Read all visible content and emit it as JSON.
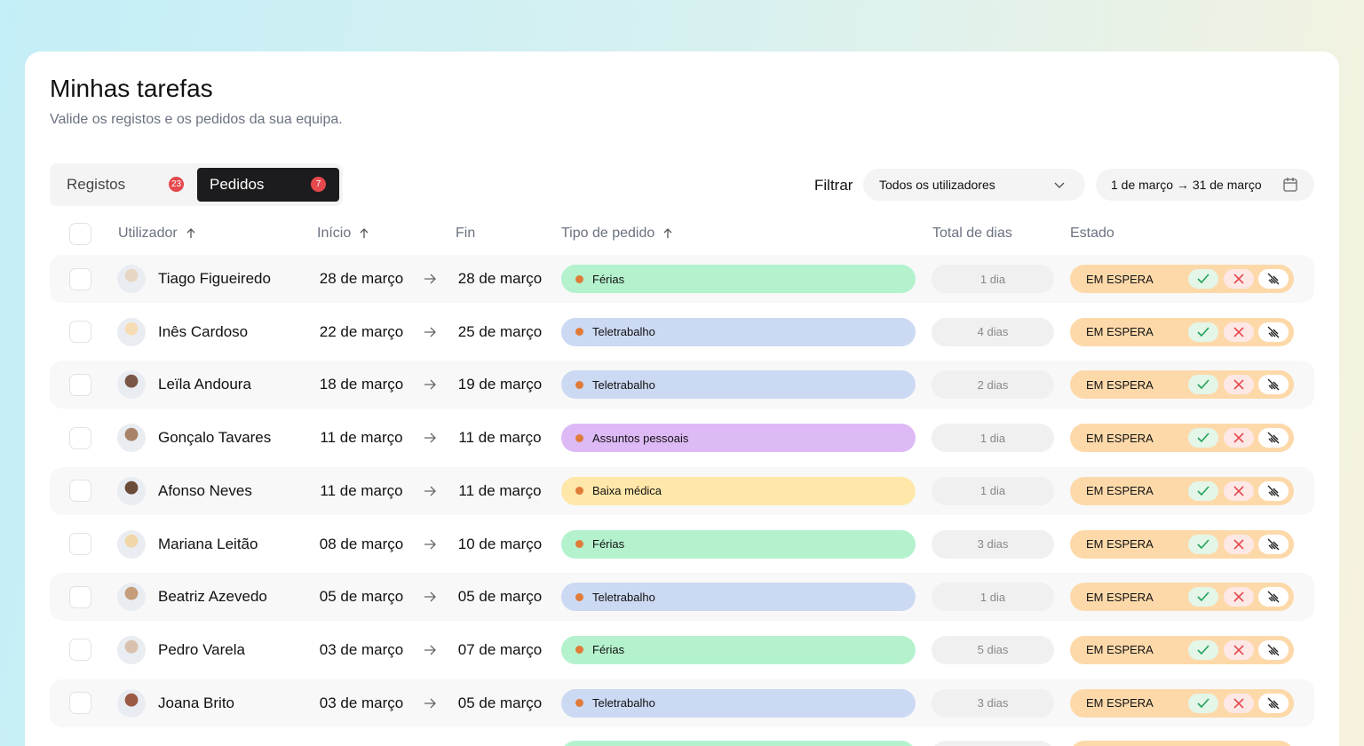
{
  "header": {
    "title": "Minhas tarefas",
    "subtitle": "Valide os registos e os pedidos da sua equipa."
  },
  "tabs": [
    {
      "label": "Registos",
      "count": 23
    },
    {
      "label": "Pedidos",
      "count": 7
    }
  ],
  "filter": {
    "label": "Filtrar",
    "users": "Todos os utilizadores",
    "range": "1 de março → 31 de março"
  },
  "table": {
    "columns": [
      "Utilizador",
      "Início",
      "Fin",
      "Tipo de pedido",
      "Total de dias",
      "Estado"
    ],
    "rows": [
      {
        "name": "Tiago Figueiredo",
        "start": "28 de março",
        "end": "28 de março",
        "type": "Férias",
        "color": "#b4f2cd",
        "days": "1 dia",
        "status": "EM ESPERA"
      },
      {
        "name": "Inês Cardoso",
        "start": "22 de março",
        "end": "25 de março",
        "type": "Teletrabalho",
        "color": "#ccd9f3",
        "days": "4 dias",
        "status": "EM ESPERA"
      },
      {
        "name": "Leïla Andoura",
        "start": "18 de março",
        "end": "19 de março",
        "type": "Teletrabalho",
        "color": "#ccd9f3",
        "days": "2 dias",
        "status": "EM ESPERA"
      },
      {
        "name": "Gonçalo Tavares",
        "start": "11 de março",
        "end": "11 de março",
        "type": "Assuntos pessoais",
        "color": "#ddb9f6",
        "days": "1 dia",
        "status": "EM ESPERA"
      },
      {
        "name": "Afonso Neves",
        "start": "11 de março",
        "end": "11 de março",
        "type": "Baixa médica",
        "color": "#fee7a9",
        "days": "1 dia",
        "status": "EM ESPERA"
      },
      {
        "name": "Mariana Leitão",
        "start": "08 de março",
        "end": "10 de março",
        "type": "Férias",
        "color": "#b4f2cd",
        "days": "3 dias",
        "status": "EM ESPERA"
      },
      {
        "name": "Beatriz Azevedo",
        "start": "05 de março",
        "end": "05 de março",
        "type": "Teletrabalho",
        "color": "#ccd9f3",
        "days": "1 dia",
        "status": "EM ESPERA"
      },
      {
        "name": "Pedro Varela",
        "start": "03 de março",
        "end": "07 de março",
        "type": "Férias",
        "color": "#b4f2cd",
        "days": "5 dias",
        "status": "EM ESPERA"
      },
      {
        "name": "Joana Brito",
        "start": "03 de março",
        "end": "05 de março",
        "type": "Teletrabalho",
        "color": "#ccd9f3",
        "days": "3 dias",
        "status": "EM ESPERA"
      }
    ]
  }
}
